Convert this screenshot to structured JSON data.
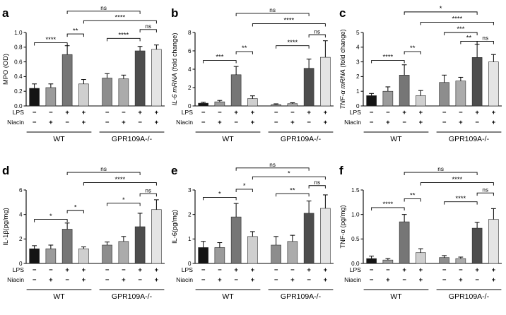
{
  "figure": {
    "background": "#ffffff",
    "axis_color": "#000000",
    "group_labels": [
      "WT",
      "GPR109A-/-"
    ],
    "treatment_rows": [
      {
        "label": "LPS",
        "signs": [
          "-",
          "-",
          "+",
          "+",
          "-",
          "-",
          "+",
          "+"
        ]
      },
      {
        "label": "Niacin",
        "signs": [
          "-",
          "+",
          "-",
          "+",
          "-",
          "+",
          "-",
          "+"
        ]
      }
    ],
    "bar_colors": [
      "#141414",
      "#9b9b9b",
      "#767676",
      "#cfcfcf",
      "#8d8d8d",
      "#ababab",
      "#4d4d4d",
      "#e4e4e4"
    ]
  },
  "chart_data": [
    {
      "type": "bar",
      "panel": "a",
      "ylabel": "MPO (OD)",
      "ylabel_parts": [
        {
          "text": "MPO (OD)",
          "italic": false
        }
      ],
      "ylim": [
        0,
        1.0
      ],
      "yticks": [
        0,
        0.2,
        0.4,
        0.6,
        0.8,
        1.0
      ],
      "ytick_decimals": 1,
      "categories": [
        "WT LPS- Niacin-",
        "WT LPS- Niacin+",
        "WT LPS+ Niacin-",
        "WT LPS+ Niacin+",
        "GPR109A-/- LPS- Niacin-",
        "GPR109A-/- LPS- Niacin+",
        "GPR109A-/- LPS+ Niacin-",
        "GPR109A-/- LPS+ Niacin+"
      ],
      "values": [
        0.24,
        0.25,
        0.7,
        0.3,
        0.38,
        0.37,
        0.75,
        0.77
      ],
      "errors": [
        0.06,
        0.05,
        0.12,
        0.06,
        0.06,
        0.05,
        0.06,
        0.06
      ],
      "significance": [
        {
          "from": 0,
          "to": 2,
          "label": "****",
          "h": 0.86
        },
        {
          "from": 2,
          "to": 3,
          "label": "**",
          "h": 0.98
        },
        {
          "from": 4,
          "to": 6,
          "label": "****",
          "h": 0.92
        },
        {
          "from": 6,
          "to": 7,
          "label": "ns",
          "h": 1.04
        },
        {
          "from": 3,
          "to": 7,
          "label": "****",
          "h": 1.16
        },
        {
          "from": 2,
          "to": 6,
          "label": "ns",
          "h": 1.29
        }
      ]
    },
    {
      "type": "bar",
      "panel": "b",
      "ylabel": "IL-6 mRNA (fold change)",
      "ylabel_parts": [
        {
          "text": "IL-6 mRNA",
          "italic": true
        },
        {
          "text": " (fold change)",
          "italic": false
        }
      ],
      "ylim": [
        0,
        8
      ],
      "yticks": [
        0,
        2,
        4,
        6,
        8
      ],
      "ytick_decimals": 0,
      "categories": [
        "WT LPS- Niacin-",
        "WT LPS- Niacin+",
        "WT LPS+ Niacin-",
        "WT LPS+ Niacin+",
        "GPR109A-/- LPS- Niacin-",
        "GPR109A-/- LPS- Niacin+",
        "GPR109A-/- LPS+ Niacin-",
        "GPR109A-/- LPS+ Niacin+"
      ],
      "values": [
        0.3,
        0.45,
        3.4,
        0.8,
        0.15,
        0.25,
        4.1,
        5.3
      ],
      "errors": [
        0.1,
        0.15,
        0.9,
        0.3,
        0.08,
        0.1,
        1.0,
        1.8
      ],
      "significance": [
        {
          "from": 0,
          "to": 2,
          "label": "***",
          "h": 0.62
        },
        {
          "from": 2,
          "to": 3,
          "label": "**",
          "h": 0.74
        },
        {
          "from": 4,
          "to": 6,
          "label": "****",
          "h": 0.82
        },
        {
          "from": 6,
          "to": 7,
          "label": "ns",
          "h": 0.97
        },
        {
          "from": 3,
          "to": 7,
          "label": "****",
          "h": 1.12
        },
        {
          "from": 2,
          "to": 6,
          "label": "ns",
          "h": 1.26
        }
      ]
    },
    {
      "type": "bar",
      "panel": "c",
      "ylabel": "TNF-α mRNA (fold change)",
      "ylabel_parts": [
        {
          "text": "TNF-α mRNA",
          "italic": true
        },
        {
          "text": " (fold change)",
          "italic": false
        }
      ],
      "ylim": [
        0,
        5
      ],
      "yticks": [
        0,
        1,
        2,
        3,
        4,
        5
      ],
      "ytick_decimals": 0,
      "categories": [
        "WT LPS- Niacin-",
        "WT LPS- Niacin+",
        "WT LPS+ Niacin-",
        "WT LPS+ Niacin+",
        "GPR109A-/- LPS- Niacin-",
        "GPR109A-/- LPS- Niacin+",
        "GPR109A-/- LPS+ Niacin-",
        "GPR109A-/- LPS+ Niacin+"
      ],
      "values": [
        0.7,
        1.0,
        2.1,
        0.7,
        1.6,
        1.7,
        3.3,
        3.0
      ],
      "errors": [
        0.15,
        0.3,
        0.7,
        0.35,
        0.5,
        0.25,
        0.9,
        0.5
      ],
      "significance": [
        {
          "from": 0,
          "to": 2,
          "label": "****",
          "h": 0.62
        },
        {
          "from": 2,
          "to": 3,
          "label": "**",
          "h": 0.74
        },
        {
          "from": 5,
          "to": 6,
          "label": "**",
          "h": 0.88
        },
        {
          "from": 6,
          "to": 7,
          "label": "ns",
          "h": 0.88
        },
        {
          "from": 4,
          "to": 6,
          "label": "***",
          "h": 1.0
        },
        {
          "from": 3,
          "to": 7,
          "label": "****",
          "h": 1.14
        },
        {
          "from": 2,
          "to": 6,
          "label": "*",
          "h": 1.28
        }
      ]
    },
    {
      "type": "bar",
      "panel": "d",
      "ylabel": "IL-1β(pg/mg)",
      "ylabel_parts": [
        {
          "text": "IL-1β(pg/mg)",
          "italic": false
        }
      ],
      "ylim": [
        0,
        6
      ],
      "yticks": [
        0,
        2,
        4,
        6
      ],
      "ytick_decimals": 0,
      "categories": [
        "WT LPS- Niacin-",
        "WT LPS- Niacin+",
        "WT LPS+ Niacin-",
        "WT LPS+ Niacin+",
        "GPR109A-/- LPS- Niacin-",
        "GPR109A-/- LPS- Niacin+",
        "GPR109A-/- LPS+ Niacin-",
        "GPR109A-/- LPS+ Niacin+"
      ],
      "values": [
        1.2,
        1.2,
        2.8,
        1.2,
        1.5,
        1.8,
        3.0,
        4.4
      ],
      "errors": [
        0.25,
        0.3,
        0.5,
        0.15,
        0.25,
        0.4,
        1.1,
        0.8
      ],
      "significance": [
        {
          "from": 0,
          "to": 2,
          "label": "*",
          "h": 0.6
        },
        {
          "from": 2,
          "to": 3,
          "label": "*",
          "h": 0.72
        },
        {
          "from": 4,
          "to": 6,
          "label": "*",
          "h": 0.82
        },
        {
          "from": 6,
          "to": 7,
          "label": "ns",
          "h": 0.95
        },
        {
          "from": 3,
          "to": 7,
          "label": "****",
          "h": 1.1
        },
        {
          "from": 2,
          "to": 6,
          "label": "ns",
          "h": 1.24
        }
      ]
    },
    {
      "type": "bar",
      "panel": "e",
      "ylabel": "IL-6(pg/mg)",
      "ylabel_parts": [
        {
          "text": "IL-6(pg/mg)",
          "italic": false
        }
      ],
      "ylim": [
        0,
        3
      ],
      "yticks": [
        0,
        1,
        2,
        3
      ],
      "ytick_decimals": 0,
      "categories": [
        "WT LPS- Niacin-",
        "WT LPS- Niacin+",
        "WT LPS+ Niacin-",
        "WT LPS+ Niacin+",
        "GPR109A-/- LPS- Niacin-",
        "GPR109A-/- LPS- Niacin+",
        "GPR109A-/- LPS+ Niacin-",
        "GPR109A-/- LPS+ Niacin+"
      ],
      "values": [
        0.65,
        0.65,
        1.9,
        1.1,
        0.75,
        0.9,
        2.05,
        2.25
      ],
      "errors": [
        0.25,
        0.2,
        0.55,
        0.2,
        0.35,
        0.25,
        0.5,
        0.55
      ],
      "significance": [
        {
          "from": 0,
          "to": 2,
          "label": "*",
          "h": 0.9
        },
        {
          "from": 2,
          "to": 3,
          "label": "*",
          "h": 1.01
        },
        {
          "from": 4,
          "to": 6,
          "label": "**",
          "h": 0.95
        },
        {
          "from": 6,
          "to": 7,
          "label": "ns",
          "h": 1.06
        },
        {
          "from": 3,
          "to": 7,
          "label": "*",
          "h": 1.18
        },
        {
          "from": 2,
          "to": 6,
          "label": "ns",
          "h": 1.3
        }
      ]
    },
    {
      "type": "bar",
      "panel": "f",
      "ylabel": "TNF-α (pg/mg)",
      "ylabel_parts": [
        {
          "text": "TNF-α (pg/mg)",
          "italic": false
        }
      ],
      "ylim": [
        0,
        1.5
      ],
      "yticks": [
        0,
        0.5,
        1.0,
        1.5
      ],
      "ytick_decimals": 1,
      "categories": [
        "WT LPS- Niacin-",
        "WT LPS- Niacin+",
        "WT LPS+ Niacin-",
        "WT LPS+ Niacin+",
        "GPR109A-/- LPS- Niacin-",
        "GPR109A-/- LPS- Niacin+",
        "GPR109A-/- LPS+ Niacin-",
        "GPR109A-/- LPS+ Niacin+"
      ],
      "values": [
        0.1,
        0.07,
        0.85,
        0.22,
        0.12,
        0.1,
        0.72,
        0.9
      ],
      "errors": [
        0.05,
        0.03,
        0.15,
        0.08,
        0.04,
        0.03,
        0.12,
        0.22
      ],
      "significance": [
        {
          "from": 0,
          "to": 2,
          "label": "****",
          "h": 0.76
        },
        {
          "from": 2,
          "to": 3,
          "label": "**",
          "h": 0.88
        },
        {
          "from": 4,
          "to": 6,
          "label": "****",
          "h": 0.84
        },
        {
          "from": 6,
          "to": 7,
          "label": "ns",
          "h": 0.96
        },
        {
          "from": 3,
          "to": 7,
          "label": "****",
          "h": 1.1
        },
        {
          "from": 2,
          "to": 6,
          "label": "ns",
          "h": 1.24
        }
      ]
    }
  ]
}
